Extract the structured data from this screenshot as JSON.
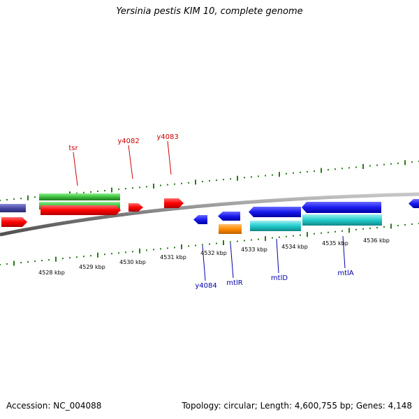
{
  "title": "Yersinia pestis KIM 10, complete genome",
  "accession": "Accession: NC_004088",
  "summary": "Topology: circular; Length: 4,600,755 bp; Genes: 4,148",
  "colors": {
    "forward_label": "#cc0000",
    "reverse_label": "#0000aa",
    "tick": "#2a7a1a",
    "backbone": "#8a8a8a",
    "red": "#ff0000",
    "green": "#3cbf3c",
    "blue": "#1a1aee",
    "cyan": "#22cccc",
    "orange": "#ff8c00",
    "slate": "#4a4aa8"
  },
  "scale_labels": [
    "4528 kbp",
    "4529 kbp",
    "4530 kbp",
    "4531 kbp",
    "4532 kbp",
    "4533 kbp",
    "4534 kbp",
    "4535 kbp",
    "4536 kbp"
  ],
  "gene_labels": {
    "forward": [
      "tsr",
      "y4082",
      "y4083"
    ],
    "reverse": [
      "y4084",
      "mtlR",
      "mtlD",
      "mtlA"
    ]
  }
}
